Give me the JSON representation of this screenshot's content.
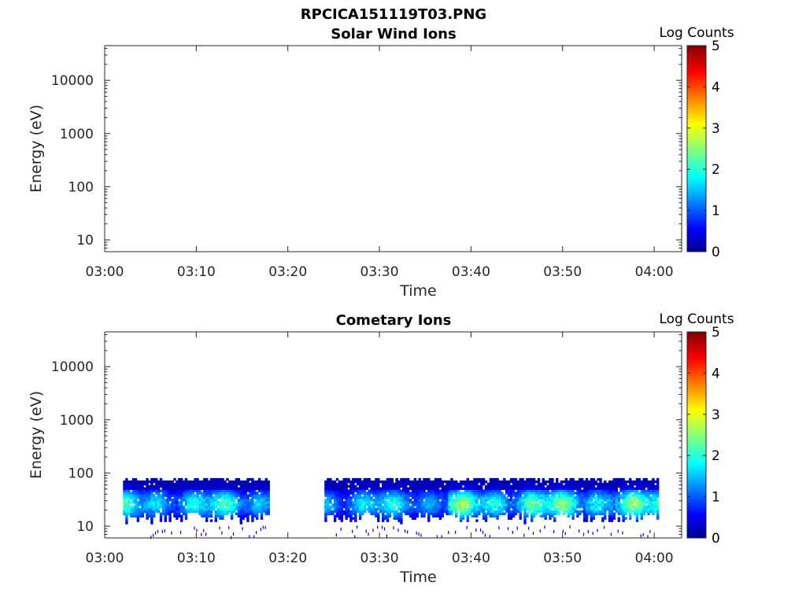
{
  "figure": {
    "title": "RPCICA151119T03.PNG"
  },
  "chart_data": [
    {
      "type": "heatmap",
      "title": "Solar Wind Ions",
      "xlabel": "Time",
      "ylabel": "Energy (eV)",
      "x_ticks": [
        "03:00",
        "03:10",
        "03:20",
        "03:30",
        "03:40",
        "03:50",
        "04:00"
      ],
      "xlim": [
        "03:00",
        "04:03"
      ],
      "y_scale": "log",
      "y_ticks": [
        10,
        100,
        1000,
        10000
      ],
      "y_tick_labels": [
        "10",
        "100",
        "1000",
        "10000"
      ],
      "ylim": [
        6,
        45000
      ],
      "colorbar": {
        "label": "Log Counts",
        "range": [
          0,
          5
        ],
        "ticks": [
          "0",
          "1",
          "2",
          "3",
          "4",
          "5"
        ],
        "colormap": "jet"
      },
      "data_present": false,
      "segments": []
    },
    {
      "type": "heatmap",
      "title": "Cometary Ions",
      "xlabel": "Time",
      "ylabel": "Energy (eV)",
      "x_ticks": [
        "03:00",
        "03:10",
        "03:20",
        "03:30",
        "03:40",
        "03:50",
        "04:00"
      ],
      "xlim": [
        "03:00",
        "04:03"
      ],
      "y_scale": "log",
      "y_ticks": [
        10,
        100,
        1000,
        10000
      ],
      "y_tick_labels": [
        "10",
        "100",
        "1000",
        "10000"
      ],
      "ylim": [
        6,
        45000
      ],
      "colorbar": {
        "label": "Log Counts",
        "range": [
          0,
          5
        ],
        "ticks": [
          "0",
          "1",
          "2",
          "3",
          "4",
          "5"
        ],
        "colormap": "jet"
      },
      "data_present": true,
      "energy_range_eV": [
        10,
        80
      ],
      "peak_energy_eV": 25,
      "segments": [
        {
          "start": "03:02",
          "end": "03:18",
          "peak_log_counts": 2.0
        },
        {
          "start": "03:24",
          "end": "03:37:30",
          "peak_log_counts": 1.8
        },
        {
          "start": "03:37:30",
          "end": "04:00:30",
          "peak_log_counts": 2.4
        }
      ]
    }
  ]
}
